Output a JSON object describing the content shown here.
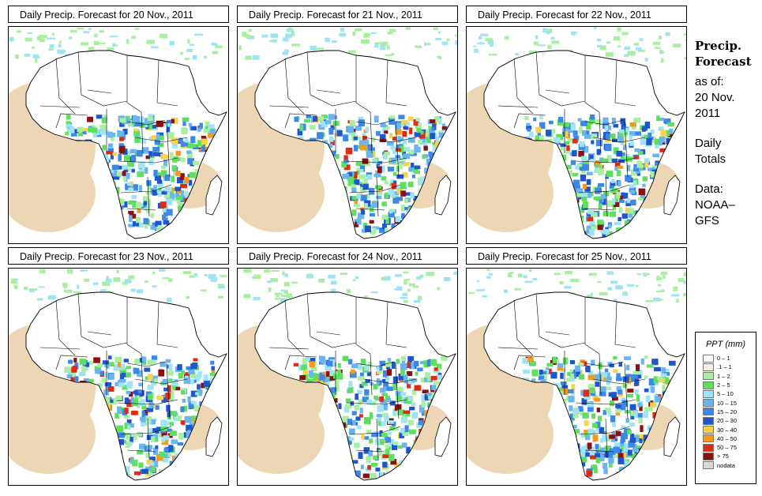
{
  "panels": [
    {
      "title": "Daily Precip. Forecast for  20 Nov., 2011"
    },
    {
      "title": "Daily Precip. Forecast for  21 Nov., 2011"
    },
    {
      "title": "Daily Precip. Forecast for  22 Nov., 2011"
    },
    {
      "title": "Daily Precip. Forecast for  23 Nov., 2011"
    },
    {
      "title": "Daily Precip. Forecast for  24 Nov., 2011"
    },
    {
      "title": "Daily Precip. Forecast for  25 Nov., 2011"
    }
  ],
  "side": {
    "heading1": "Precip.",
    "heading2": "Forecast",
    "asof1": "as of:",
    "asof2": "20 Nov.",
    "asof3": "2011",
    "daily1": "Daily",
    "daily2": "Totals",
    "data1": "Data:",
    "data2": "NOAA–",
    "data3": "GFS"
  },
  "legend": {
    "title": "PPT (mm)",
    "items": [
      {
        "label": "0 – 1",
        "color": "#ffffff"
      },
      {
        "label": ".1 – 1",
        "color": "#f5f0dc"
      },
      {
        "label": "1 – 2",
        "color": "#a8f0a0"
      },
      {
        "label": "2 – 5",
        "color": "#5ee05e"
      },
      {
        "label": "5 – 10",
        "color": "#9ee4f4"
      },
      {
        "label": "10 – 15",
        "color": "#6ab4f0"
      },
      {
        "label": "15 – 20",
        "color": "#3c88e8"
      },
      {
        "label": "20 – 30",
        "color": "#1c56d0"
      },
      {
        "label": "30 – 40",
        "color": "#f8d24a"
      },
      {
        "label": "40 – 50",
        "color": "#f49a1c"
      },
      {
        "label": "50 – 75",
        "color": "#e02a14"
      },
      {
        "label": "> 75",
        "color": "#8c1010"
      },
      {
        "label": "nodata",
        "color": "#d8d8d8"
      }
    ]
  },
  "colors": {
    "dry": "#ecd6b4",
    "land_outline": "#000000"
  }
}
